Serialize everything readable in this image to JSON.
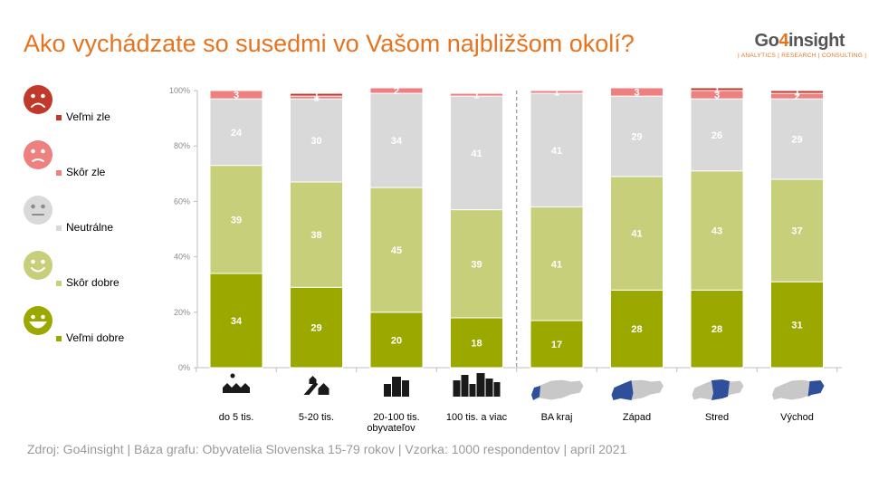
{
  "title": "Ako vychádzate so susedmi vo Vašom najbližšom okolí?",
  "logo": {
    "main": "Go4insight",
    "sub": "| ANALYTICS | RESEARCH | CONSULTING |"
  },
  "source": "Zdroj: Go4insight | Báza grafu: Obyvatelia Slovenska 15-79 rokov | Vzorka: 1000 respondentov | apríl 2021",
  "chart_data": {
    "type": "bar",
    "stacked": true,
    "categories": [
      "do 5 tis.",
      "5-20 tis.",
      "20-100 tis.",
      "100 tis. a viac",
      "BA kraj",
      "Západ",
      "Stred",
      "Východ"
    ],
    "category_group_label": "obyvateľov",
    "yticks": [
      "0%",
      "20%",
      "40%",
      "60%",
      "80%",
      "100%"
    ],
    "ylim": [
      0,
      100
    ],
    "series": [
      {
        "name": "Veľmi dobre",
        "color": "#9aa800",
        "values": [
          34,
          29,
          20,
          18,
          17,
          28,
          28,
          31
        ]
      },
      {
        "name": "Skôr dobre",
        "color": "#c8cf7a",
        "values": [
          39,
          38,
          45,
          39,
          41,
          41,
          43,
          37
        ]
      },
      {
        "name": "Neutrálne",
        "color": "#d9d9d9",
        "values": [
          24,
          30,
          34,
          41,
          41,
          29,
          26,
          29
        ]
      },
      {
        "name": "Skôr zle",
        "color": "#ee8080",
        "values": [
          3,
          1,
          2,
          1,
          1,
          3,
          3,
          2
        ]
      },
      {
        "name": "Veľmi zle",
        "color": "#c0392b",
        "values": [
          0,
          1,
          0,
          0,
          0,
          0,
          1,
          1
        ]
      }
    ],
    "legend": {
      "placement": "left",
      "order": [
        "Veľmi zle",
        "Skôr zle",
        "Neutrálne",
        "Skôr dobre",
        "Veľmi dobre"
      ]
    },
    "separator_after_category": "100 tis. a viac",
    "category_icons": [
      "village-icon",
      "town-icon",
      "city-icon",
      "large-city-icon",
      "map-ba-kraj-icon",
      "map-zapad-icon",
      "map-stred-icon",
      "map-vychod-icon"
    ]
  }
}
